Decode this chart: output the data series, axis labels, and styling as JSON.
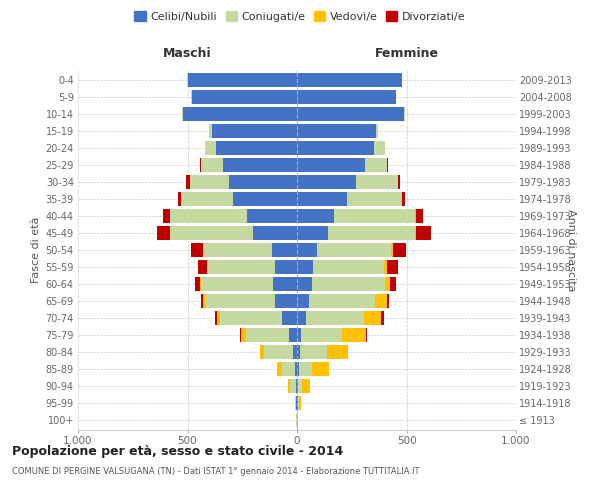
{
  "age_groups": [
    "100+",
    "95-99",
    "90-94",
    "85-89",
    "80-84",
    "75-79",
    "70-74",
    "65-69",
    "60-64",
    "55-59",
    "50-54",
    "45-49",
    "40-44",
    "35-39",
    "30-34",
    "25-29",
    "20-24",
    "15-19",
    "10-14",
    "5-9",
    "0-4"
  ],
  "birth_years": [
    "≤ 1913",
    "1914-1918",
    "1919-1923",
    "1924-1928",
    "1929-1933",
    "1934-1938",
    "1939-1943",
    "1944-1948",
    "1949-1953",
    "1954-1958",
    "1959-1963",
    "1964-1968",
    "1969-1973",
    "1974-1978",
    "1979-1983",
    "1984-1988",
    "1989-1993",
    "1994-1998",
    "1999-2003",
    "2004-2008",
    "2009-2013"
  ],
  "maschi": {
    "celibi": [
      2,
      3,
      5,
      10,
      20,
      35,
      70,
      100,
      110,
      100,
      115,
      200,
      230,
      290,
      310,
      340,
      370,
      390,
      520,
      480,
      500
    ],
    "coniugati": [
      2,
      5,
      25,
      60,
      130,
      200,
      280,
      320,
      330,
      310,
      310,
      380,
      350,
      240,
      180,
      100,
      50,
      10,
      3,
      2,
      1
    ],
    "vedovi": [
      0,
      3,
      10,
      20,
      20,
      20,
      15,
      10,
      5,
      3,
      2,
      2,
      1,
      0,
      0,
      0,
      0,
      0,
      0,
      0,
      0
    ],
    "divorziati": [
      0,
      0,
      0,
      0,
      0,
      5,
      10,
      10,
      20,
      40,
      55,
      55,
      30,
      15,
      15,
      5,
      2,
      0,
      0,
      0,
      0
    ]
  },
  "femmine": {
    "nubili": [
      2,
      3,
      5,
      10,
      15,
      20,
      40,
      55,
      70,
      75,
      90,
      140,
      170,
      230,
      270,
      310,
      350,
      360,
      490,
      450,
      480
    ],
    "coniugate": [
      2,
      5,
      20,
      60,
      120,
      185,
      265,
      300,
      330,
      320,
      340,
      400,
      370,
      250,
      190,
      100,
      50,
      10,
      3,
      2,
      1
    ],
    "vedove": [
      1,
      8,
      35,
      75,
      100,
      110,
      80,
      55,
      25,
      15,
      8,
      5,
      2,
      0,
      0,
      0,
      0,
      0,
      0,
      0,
      0
    ],
    "divorziate": [
      0,
      0,
      0,
      0,
      0,
      5,
      10,
      10,
      25,
      50,
      60,
      65,
      35,
      15,
      10,
      5,
      2,
      0,
      0,
      0,
      0
    ]
  },
  "colors": {
    "celibi": "#4472c4",
    "coniugati": "#c5d9a0",
    "vedovi": "#ffc000",
    "divorziati": "#c00000"
  },
  "xlim": 1000,
  "title": "Popolazione per età, sesso e stato civile - 2014",
  "subtitle": "COMUNE DI PERGINE VALSUGANA (TN) - Dati ISTAT 1° gennaio 2014 - Elaborazione TUTTITALIA.IT",
  "ylabel_left": "Fasce di età",
  "ylabel_right": "Anni di nascita",
  "xlabel_left": "Maschi",
  "xlabel_right": "Femmine",
  "legend_labels": [
    "Celibi/Nubili",
    "Coniugati/e",
    "Vedovi/e",
    "Divorziati/e"
  ],
  "bg_color": "#ffffff",
  "grid_color": "#cccccc"
}
